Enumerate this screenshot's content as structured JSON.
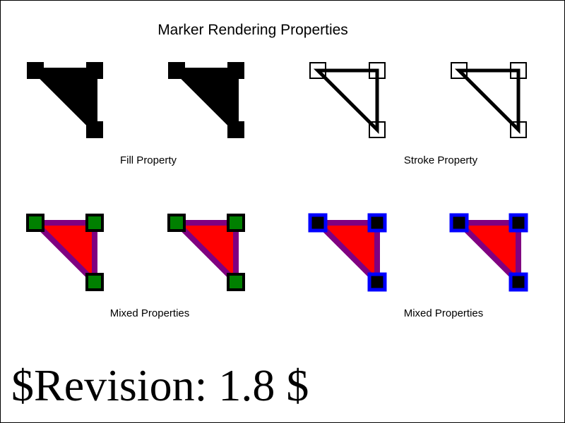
{
  "title": "Marker Rendering Properties",
  "captions": {
    "fill": "Fill Property",
    "stroke": "Stroke Property",
    "mixed_left": "Mixed Properties",
    "mixed_right": "Mixed Properties"
  },
  "revision": "$Revision: 1.8 $",
  "colors": {
    "black": "#000000",
    "white": "#ffffff",
    "triangle_fill": "#ff0000",
    "triangle_stroke": "#800080",
    "marker_green_fill": "#008000",
    "marker_blue_stroke": "#0000ff"
  }
}
